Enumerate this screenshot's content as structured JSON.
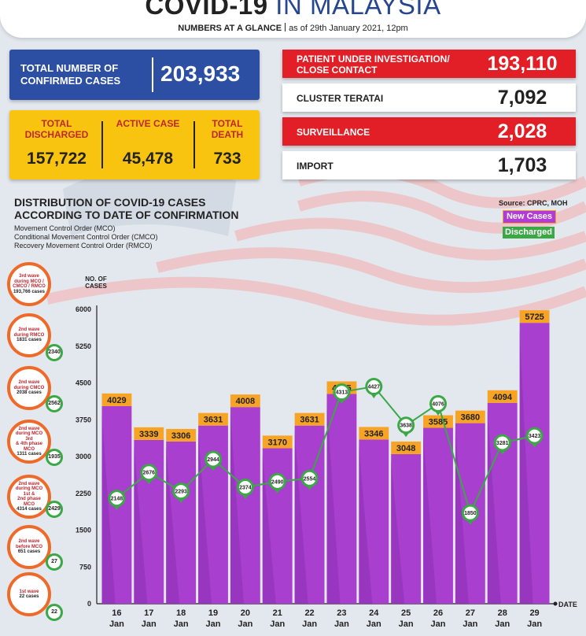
{
  "header": {
    "title_bold": "COVID-19",
    "title_light": "IN MALAYSIA",
    "subtitle_bold": "NUMBERS AT A GLANCE",
    "subtitle_date": "as of 29th January 2021, 12pm"
  },
  "summary": {
    "confirmed_label": "TOTAL NUMBER OF CONFIRMED CASES",
    "confirmed_value": "203,933",
    "discharged_label": "TOTAL DISCHARGED",
    "discharged_value": "157,722",
    "active_label": "ACTIVE CASE",
    "active_value": "45,478",
    "death_label": "TOTAL DEATH",
    "death_value": "733"
  },
  "categories": [
    {
      "label": "PATIENT UNDER INVESTIGATION/ CLOSE CONTACT",
      "value": "193,110",
      "style": "red"
    },
    {
      "label": "CLUSTER TERATAI",
      "value": "7,092",
      "style": "white"
    },
    {
      "label": "SURVEILLANCE",
      "value": "2,028",
      "style": "red"
    },
    {
      "label": "IMPORT",
      "value": "1,703",
      "style": "white"
    }
  ],
  "chart_section": {
    "title_line1": "DISTRIBUTION OF COVID-19 CASES",
    "title_line2": "ACCORDING TO DATE OF CONFIRMATION",
    "note1": "Movement Control Order (MCO)",
    "note2": "Conditional Movement Control Order (CMCO)",
    "note3": "Recovery Movement Control Order (RMCO)",
    "source": "Source: CPRC, MOH",
    "legend_new": "New Cases",
    "legend_discharged": "Discharged"
  },
  "waves": [
    {
      "lines": [
        "3rd wave",
        "during MCO /",
        "CMCO / RMCO"
      ],
      "num": "193,766",
      "unit": "cases",
      "badge": ""
    },
    {
      "lines": [
        "2nd wave",
        "during RMCO"
      ],
      "num": "1831",
      "unit": "cases",
      "badge": "2340"
    },
    {
      "lines": [
        "2nd wave",
        "during CMCO"
      ],
      "num": "2038",
      "unit": "cases",
      "badge": "2562"
    },
    {
      "lines": [
        "2nd wave",
        "during MCO 3rd",
        "& 4th phase MCO"
      ],
      "num": "1311",
      "unit": "cases",
      "badge": "1935"
    },
    {
      "lines": [
        "2nd wave",
        "during MCO 1st &",
        "2nd phase MCO"
      ],
      "num": "4314",
      "unit": "cases",
      "badge": "2429"
    },
    {
      "lines": [
        "2nd wave",
        "before MCO"
      ],
      "num": "651",
      "unit": "cases",
      "badge": "27"
    },
    {
      "lines": [
        "1st wave"
      ],
      "num": "22",
      "unit": "cases",
      "badge": "22"
    }
  ],
  "chart_data": {
    "type": "bar",
    "ylabel": "NO. OF CASES",
    "xlabel": "DATE",
    "ylim": [
      0,
      6000
    ],
    "yticks": [
      0,
      750,
      1500,
      2250,
      3000,
      3750,
      4500,
      5250,
      6000
    ],
    "categories": [
      "16 Jan",
      "17 Jan",
      "18 Jan",
      "19 Jan",
      "20 Jan",
      "21 Jan",
      "22 Jan",
      "23 Jan",
      "24 Jan",
      "25 Jan",
      "26 Jan",
      "27 Jan",
      "28 Jan",
      "29 Jan"
    ],
    "series": [
      {
        "name": "New Cases",
        "type": "bar",
        "color": "#a93fcf",
        "values": [
          4029,
          3339,
          3306,
          3631,
          4008,
          3170,
          3631,
          4275,
          3346,
          3048,
          3585,
          3680,
          4094,
          5725
        ]
      },
      {
        "name": "Discharged",
        "type": "line",
        "color": "#3aa845",
        "values": [
          2148,
          2676,
          2293,
          2944,
          2374,
          2490,
          2554,
          4313,
          4427,
          3638,
          4076,
          1850,
          3281,
          3423
        ]
      }
    ]
  }
}
